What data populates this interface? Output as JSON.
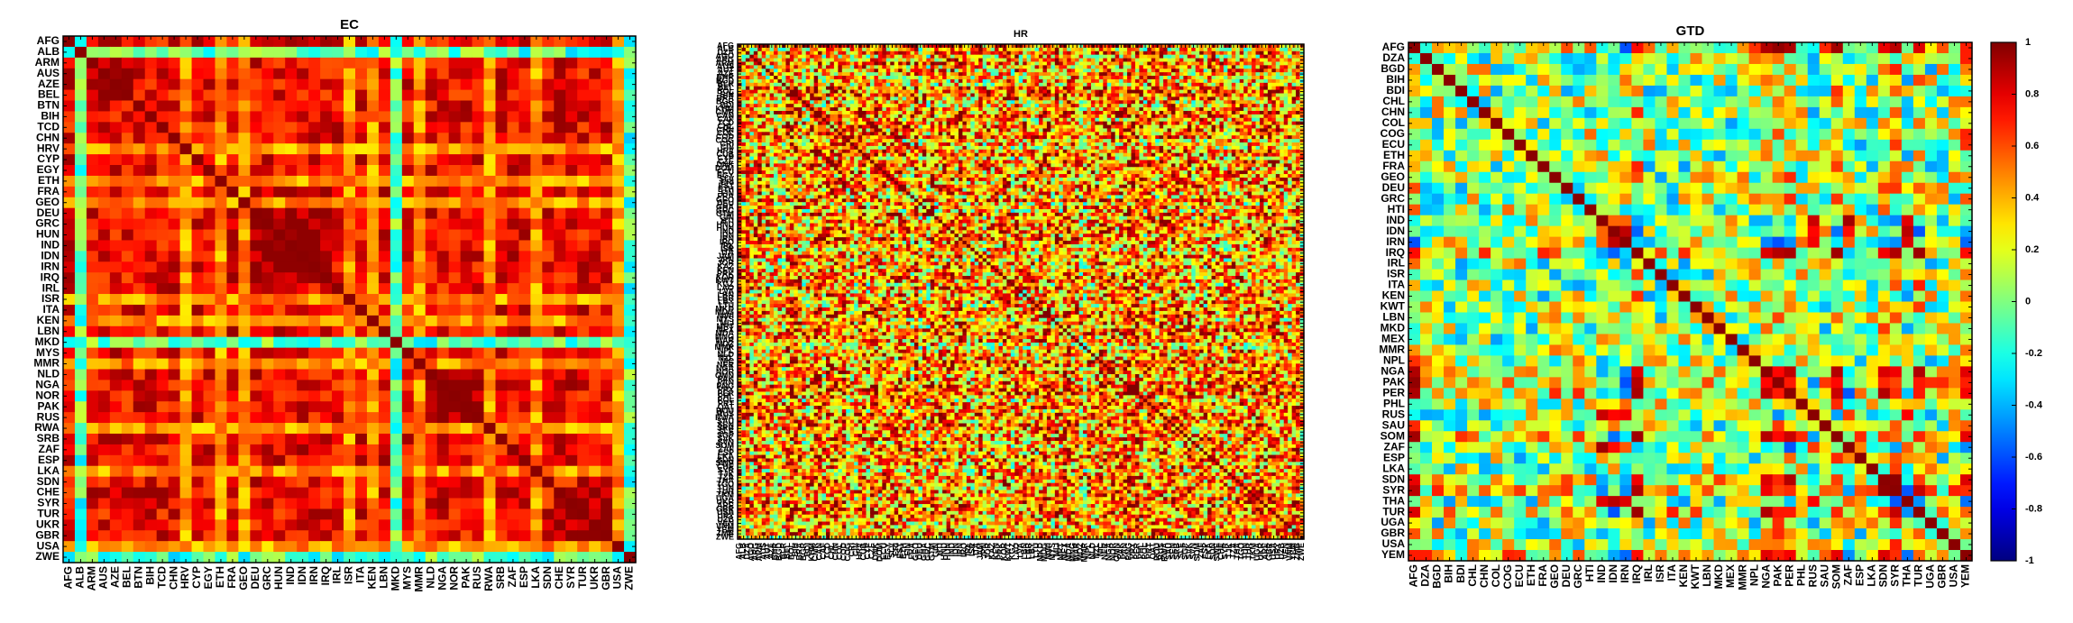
{
  "chart_data": [
    {
      "type": "heatmap",
      "title": "EC",
      "row_labels": [
        "AFG",
        "ALB",
        "ARM",
        "AUS",
        "AZE",
        "BEL",
        "BTN",
        "BIH",
        "TCD",
        "CHN",
        "HRV",
        "CYP",
        "EGY",
        "ETH",
        "FRA",
        "GEO",
        "DEU",
        "GRC",
        "HUN",
        "IND",
        "IDN",
        "IRN",
        "IRQ",
        "IRL",
        "ISR",
        "ITA",
        "KEN",
        "LBN",
        "MKD",
        "MYS",
        "MMR",
        "NLD",
        "NGA",
        "NOR",
        "PAK",
        "RUS",
        "RWA",
        "SRB",
        "ZAF",
        "ESP",
        "LKA",
        "SDN",
        "CHE",
        "SYR",
        "TUR",
        "UKR",
        "GBR",
        "USA",
        "ZWE"
      ],
      "col_labels": [
        "AFG",
        "ALB",
        "ARM",
        "AUS",
        "AZE",
        "BEL",
        "BTN",
        "BIH",
        "TCD",
        "CHN",
        "HRV",
        "CYP",
        "EGY",
        "ETH",
        "FRA",
        "GEO",
        "DEU",
        "GRC",
        "HUN",
        "IND",
        "IDN",
        "IRN",
        "IRQ",
        "IRL",
        "ISR",
        "ITA",
        "KEN",
        "LBN",
        "MKD",
        "MYS",
        "MMR",
        "NLD",
        "NGA",
        "NOR",
        "PAK",
        "RUS",
        "RWA",
        "SRB",
        "ZAF",
        "ESP",
        "LKA",
        "SDN",
        "CHE",
        "SYR",
        "TUR",
        "UKR",
        "GBR",
        "USA",
        "ZWE"
      ],
      "low_rows": [
        "ALB",
        "MKD",
        "ZWE"
      ],
      "mid_rows": [
        "HRV",
        "ETH",
        "GEO",
        "ISR",
        "KEN",
        "MMR",
        "RWA",
        "LKA",
        "USA"
      ],
      "block_groups": [
        [
          2,
          3,
          4,
          5
        ],
        [
          16,
          17,
          18,
          19,
          20,
          21,
          22
        ],
        [
          32,
          33,
          34,
          35
        ],
        [
          42,
          43,
          44,
          45,
          46
        ]
      ],
      "vmin": -1,
      "vmax": 1
    },
    {
      "type": "heatmap",
      "title": "HR",
      "row_labels": [
        "AFG",
        "ALB",
        "DZA",
        "AGO",
        "ARG",
        "ARM",
        "AUS",
        "AUT",
        "AZE",
        "BHR",
        "BGD",
        "BLR",
        "BEL",
        "BOL",
        "BIH",
        "BRA",
        "BGR",
        "BDI",
        "KHM",
        "CMR",
        "CAN",
        "CAF",
        "TCD",
        "CHL",
        "CHN",
        "COL",
        "COD",
        "COG",
        "CRI",
        "CIV",
        "HRV",
        "CUB",
        "CYP",
        "CZE",
        "DNK",
        "DOM",
        "ECU",
        "EGY",
        "SLV",
        "ERI",
        "EST",
        "ETH",
        "FIN",
        "FRA",
        "GEO",
        "DEU",
        "GHA",
        "GRC",
        "GTM",
        "GIN",
        "HTI",
        "HND",
        "HUN",
        "IND",
        "IDN",
        "IRN",
        "IRQ",
        "IRL",
        "ISR",
        "ITA",
        "JAM",
        "JPN",
        "JOR",
        "KAZ",
        "KEN",
        "PRK",
        "KOR",
        "KWT",
        "KGZ",
        "LAO",
        "LVA",
        "LBN",
        "LBR",
        "LBY",
        "LTU",
        "MKD",
        "MDG",
        "MWI",
        "MYS",
        "MLI",
        "MRT",
        "MEX",
        "MDA",
        "MNG",
        "MAR",
        "MOZ",
        "MMR",
        "NPL",
        "NLD",
        "NZL",
        "NIC",
        "NER",
        "NGA",
        "NOR",
        "OMN",
        "PAK",
        "PAN",
        "PNG",
        "PRY",
        "PER",
        "PHL",
        "POL",
        "PRT",
        "QAT",
        "ROU",
        "RUS",
        "RWA",
        "SAU",
        "SEN",
        "SRB",
        "SLE",
        "SGP",
        "SVK",
        "SVN",
        "SOM",
        "ZAF",
        "ESP",
        "LKA",
        "SDN",
        "SWE",
        "CHE",
        "SYR",
        "TJK",
        "TZA",
        "THA",
        "TGO",
        "TUN",
        "TUR",
        "TKM",
        "UGA",
        "UKR",
        "ARE",
        "GBR",
        "USA",
        "URY",
        "UZB",
        "VEN",
        "VNM",
        "YEM",
        "ZMB",
        "ZWE"
      ],
      "vmin": -1,
      "vmax": 1
    },
    {
      "type": "heatmap",
      "title": "GTD",
      "row_labels": [
        "AFG",
        "DZA",
        "BGD",
        "BIH",
        "BDI",
        "CHL",
        "CHN",
        "COL",
        "COG",
        "ECU",
        "ETH",
        "FRA",
        "GEO",
        "DEU",
        "GRC",
        "HTI",
        "IND",
        "IDN",
        "IRN",
        "IRQ",
        "IRL",
        "ISR",
        "ITA",
        "KEN",
        "KWT",
        "LBN",
        "MKD",
        "MEX",
        "MMR",
        "NPL",
        "NGA",
        "PAK",
        "PER",
        "PHL",
        "RUS",
        "SAU",
        "SOM",
        "ZAF",
        "ESP",
        "LKA",
        "SDN",
        "SYR",
        "THA",
        "TUR",
        "UGA",
        "GBR",
        "USA",
        "YEM"
      ],
      "col_labels": [
        "AFG",
        "DZA",
        "BGD",
        "BIH",
        "BDI",
        "CHL",
        "CHN",
        "COL",
        "COG",
        "ECU",
        "ETH",
        "FRA",
        "GEO",
        "DEU",
        "GRC",
        "HTI",
        "IND",
        "IDN",
        "IRN",
        "IRQ",
        "IRL",
        "ISR",
        "ITA",
        "KEN",
        "KWT",
        "LBN",
        "MKD",
        "MEX",
        "MMR",
        "NPL",
        "NGA",
        "PAK",
        "PER",
        "PHL",
        "RUS",
        "SAU",
        "SOM",
        "ZAF",
        "ESP",
        "LKA",
        "SDN",
        "SYR",
        "THA",
        "TUR",
        "UGA",
        "GBR",
        "USA",
        "YEM"
      ],
      "block_groups": [
        [
          0,
          19,
          30,
          31,
          32,
          36,
          40,
          41,
          43,
          47
        ],
        [
          16,
          17,
          18,
          34,
          37,
          42
        ]
      ],
      "vmin": -1,
      "vmax": 1,
      "colorbar_ticks": [
        "1",
        "0.8",
        "0.6",
        "0.4",
        "0.2",
        "0",
        "-0.2",
        "-0.4",
        "-0.6",
        "-0.8",
        "-1"
      ]
    }
  ]
}
